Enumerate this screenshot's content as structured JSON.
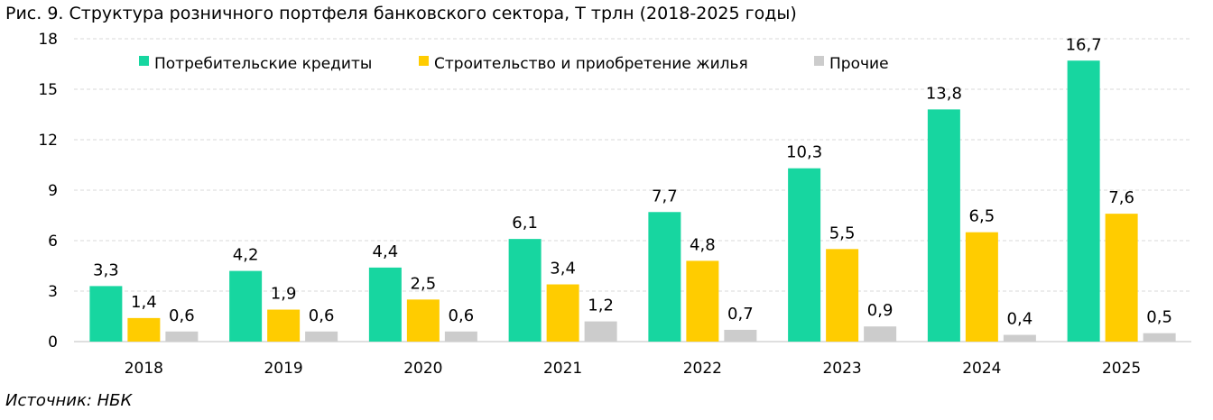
{
  "figure": {
    "title": "Рис. 9. Структура розничного портфеля банковского сектора, Т трлн (2018-2025 годы)",
    "source": "Источник: НБК"
  },
  "chart_data": {
    "type": "bar",
    "title": "Рис. 9. Структура розничного портфеля банковского сектора, Т трлн (2018-2025 годы)",
    "categories": [
      "2018",
      "2019",
      "2020",
      "2021",
      "2022",
      "2023",
      "2024",
      "2025"
    ],
    "series": [
      {
        "name": "Потребительские кредиты",
        "color": "#17d6a0",
        "values": [
          3.3,
          4.2,
          4.4,
          6.1,
          7.7,
          10.3,
          13.8,
          16.7
        ],
        "labels": [
          "3,3",
          "4,2",
          "4,4",
          "6,1",
          "7,7",
          "10,3",
          "13,8",
          "16,7"
        ]
      },
      {
        "name": "Строительство и приобретение жилья",
        "color": "#ffcc00",
        "values": [
          1.4,
          1.9,
          2.5,
          3.4,
          4.8,
          5.5,
          6.5,
          7.6
        ],
        "labels": [
          "1,4",
          "1,9",
          "2,5",
          "3,4",
          "4,8",
          "5,5",
          "6,5",
          "7,6"
        ]
      },
      {
        "name": "Прочие",
        "color": "#cccccc",
        "values": [
          0.6,
          0.6,
          0.6,
          1.2,
          0.7,
          0.9,
          0.4,
          0.5
        ],
        "labels": [
          "0,6",
          "0,6",
          "0,6",
          "1,2",
          "0,7",
          "0,9",
          "0,4",
          "0,5"
        ]
      }
    ],
    "ylim": [
      0,
      18
    ],
    "yticks": [
      0,
      3,
      6,
      9,
      12,
      15,
      18
    ],
    "ytick_labels": [
      "0",
      "3",
      "6",
      "9",
      "12",
      "15",
      "18"
    ],
    "grid": true,
    "legend_position": "top-center"
  }
}
